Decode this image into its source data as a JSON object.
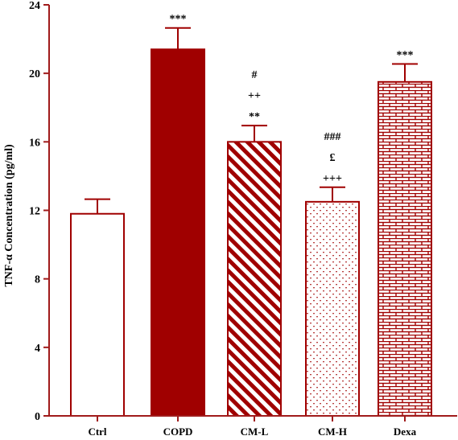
{
  "chart_data": {
    "type": "bar",
    "title": "",
    "xlabel": "",
    "ylabel": "TNF-α Concentration (pg/ml)",
    "ylim": [
      0,
      24
    ],
    "yticks": [
      0,
      4,
      8,
      12,
      16,
      20,
      24
    ],
    "categories": [
      "Ctrl",
      "COPD",
      "CM-L",
      "CM-H",
      "Dexa"
    ],
    "values": [
      11.8,
      21.4,
      16.0,
      12.5,
      19.5
    ],
    "errors": [
      0.85,
      1.25,
      0.95,
      0.85,
      1.05
    ],
    "annotations": [
      [],
      [
        "***"
      ],
      [
        "#",
        "++",
        "**"
      ],
      [
        "###",
        "£",
        "+++"
      ],
      [
        "***"
      ]
    ],
    "fills": [
      "empty",
      "solid",
      "diagonal-stripes",
      "dots",
      "bricks"
    ],
    "grid": false,
    "colors": {
      "axis": "#a01b1b",
      "bar": "#a00000",
      "text": "#000000"
    }
  }
}
